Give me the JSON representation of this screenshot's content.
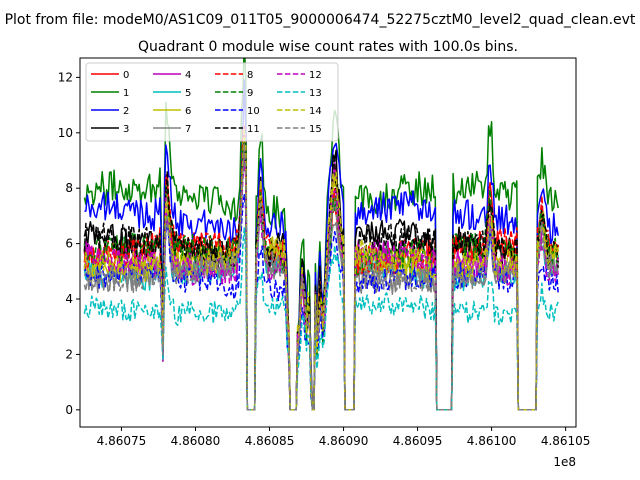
{
  "chart_data": {
    "type": "line",
    "suptitle": "Plot from file: modeM0/AS1C09_011T05_9000006474_52275cztM0_level2_quad_clean.evt",
    "title": "Quadrant 0 module wise count rates with 100.0s bins.",
    "xlabel": "",
    "ylabel": "",
    "x_offset_label": "1e8",
    "xlim": [
      486072200,
      486105700
    ],
    "ylim": [
      -0.62,
      12.7
    ],
    "x_ticks": [
      486075000,
      486080000,
      486085000,
      486090000,
      486095000,
      486100000,
      486105000
    ],
    "x_tick_labels": [
      "4.86075",
      "4.86080",
      "4.86085",
      "4.86090",
      "4.86095",
      "4.86100",
      "4.86105"
    ],
    "y_ticks": [
      0,
      2,
      4,
      6,
      8,
      10,
      12
    ],
    "y_tick_labels": [
      "0",
      "2",
      "4",
      "6",
      "8",
      "10",
      "12"
    ],
    "grid": false,
    "legend_position": "top-left",
    "x_range": [
      486072500,
      486104500
    ],
    "bin_seconds": 100,
    "gaps": [
      [
        486083500,
        486084000
      ],
      [
        486086400,
        486086800
      ],
      [
        486087900,
        486088050
      ],
      [
        486090100,
        486090700
      ],
      [
        486096300,
        486097300
      ],
      [
        486101800,
        486103000
      ]
    ],
    "dips": [
      {
        "x": 486077800,
        "width": 100,
        "floor": 0.32
      },
      {
        "x": 486086300,
        "width": 150,
        "floor": 0.4
      },
      {
        "x": 486086900,
        "width": 250,
        "floor": 0.45
      },
      {
        "x": 486087500,
        "width": 200,
        "floor": 0.55
      },
      {
        "x": 486087800,
        "width": 100,
        "floor": 0.2
      },
      {
        "x": 486088200,
        "width": 150,
        "floor": 0.45
      },
      {
        "x": 486088600,
        "width": 200,
        "floor": 0.55
      }
    ],
    "peaks": [
      {
        "x": 486078000,
        "width": 300,
        "amp": 0.42
      },
      {
        "x": 486083300,
        "width": 250,
        "amp": 0.75
      },
      {
        "x": 486084400,
        "width": 200,
        "amp": 0.38
      },
      {
        "x": 486089400,
        "width": 350,
        "amp": 0.45
      },
      {
        "x": 486099900,
        "width": 200,
        "amp": 0.32
      },
      {
        "x": 486103400,
        "width": 250,
        "amp": 0.22
      }
    ],
    "series": [
      {
        "name": "0",
        "color": "#ff0000",
        "dash": "solid",
        "base": 5.6
      },
      {
        "name": "1",
        "color": "#008000",
        "dash": "solid",
        "base": 7.6
      },
      {
        "name": "2",
        "color": "#0000ff",
        "dash": "solid",
        "base": 6.9
      },
      {
        "name": "3",
        "color": "#000000",
        "dash": "solid",
        "base": 6.0
      },
      {
        "name": "4",
        "color": "#bf00bf",
        "dash": "solid",
        "base": 5.5
      },
      {
        "name": "5",
        "color": "#00bfbf",
        "dash": "solid",
        "base": 5.1
      },
      {
        "name": "6",
        "color": "#bfbf00",
        "dash": "solid",
        "base": 5.4
      },
      {
        "name": "7",
        "color": "#808080",
        "dash": "solid",
        "base": 4.9
      },
      {
        "name": "8",
        "color": "#ff0000",
        "dash": "dashed",
        "base": 5.7
      },
      {
        "name": "9",
        "color": "#008000",
        "dash": "dashed",
        "base": 5.6
      },
      {
        "name": "10",
        "color": "#0000ff",
        "dash": "dashed",
        "base": 4.6
      },
      {
        "name": "11",
        "color": "#000000",
        "dash": "dashed",
        "base": 5.9
      },
      {
        "name": "12",
        "color": "#bf00bf",
        "dash": "dashed",
        "base": 5.3
      },
      {
        "name": "13",
        "color": "#00bfbf",
        "dash": "dashed",
        "base": 3.7
      },
      {
        "name": "14",
        "color": "#bfbf00",
        "dash": "dashed",
        "base": 5.5
      },
      {
        "name": "15",
        "color": "#808080",
        "dash": "dashed",
        "base": 5.0
      }
    ]
  }
}
